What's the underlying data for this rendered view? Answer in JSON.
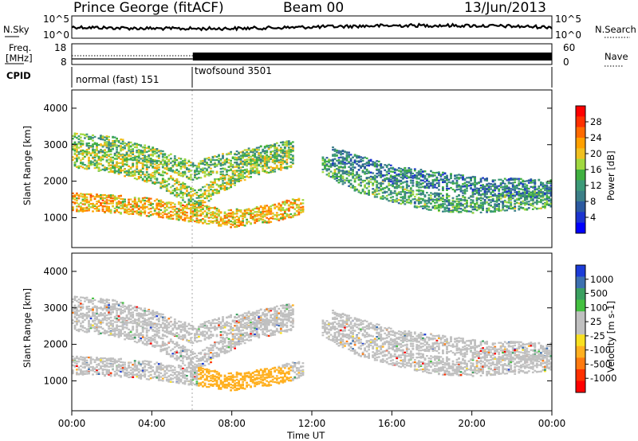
{
  "header": {
    "station": "Prince George (fitACF)",
    "beam": "Beam 00",
    "date": "13/Jun/2013"
  },
  "noise_panel": {
    "left_label": "N.Sky",
    "right_label": "N.Search",
    "left_ticks": [
      "10^5",
      "10^0"
    ],
    "right_ticks": [
      "10^5",
      "10^0"
    ]
  },
  "freq_panel": {
    "label_line1": "Freq.",
    "label_line2": "[MHz]",
    "right_label": "Nave",
    "left_ticks": [
      "18",
      "8"
    ],
    "right_ticks": [
      "60",
      "0"
    ]
  },
  "cpid_panel": {
    "label": "CPID",
    "modes": [
      {
        "name": "normal (fast) 151",
        "start_hour": 0,
        "end_hour": 6.05
      },
      {
        "name": "twofsound 3501",
        "start_hour": 6.05,
        "end_hour": 24
      }
    ]
  },
  "power_panel": {
    "ylabel": "Slant Range [km]",
    "cbar_label": "Power [dB]",
    "cbar_ticks": [
      "28",
      "24",
      "20",
      "16",
      "12",
      "8",
      "4"
    ],
    "cbar_colors": [
      "#ff0000",
      "#ff3000",
      "#ff6a00",
      "#ffa000",
      "#f0c020",
      "#a0d840",
      "#40b040",
      "#3c9a78",
      "#3c7f88",
      "#2c5aa0",
      "#1c34d0",
      "#0000ff"
    ]
  },
  "velocity_panel": {
    "ylabel": "Slant Range [km]",
    "cbar_label": "Velocity [m s-1]",
    "cbar_ticks": [
      "1000",
      "500",
      "100",
      "25",
      "-25",
      "-100",
      "-500",
      "-1000"
    ],
    "cbar_colors": [
      "#1c3cd8",
      "#3c70b0",
      "#3aa060",
      "#44c040",
      "#c0c0c0",
      "#c0c0c0",
      "#f8e020",
      "#ffb020",
      "#ff7a10",
      "#ff3000",
      "#ff0000"
    ]
  },
  "x_axis": {
    "label": "Time UT",
    "ticks": [
      "00:00",
      "04:00",
      "08:00",
      "12:00",
      "16:00",
      "20:00",
      "00:00"
    ]
  },
  "chart_data": {
    "type": "heatmap",
    "title": "Prince George (fitACF)",
    "subtitle": "Beam 00 — 13/Jun/2013",
    "xlabel": "Time UT",
    "ylabel": "Slant Range [km]",
    "xlim_hours": [
      0,
      24
    ],
    "ylim_km": [
      180,
      4500
    ],
    "yticks": [
      1000,
      2000,
      3000,
      4000
    ],
    "power_range_db": [
      0,
      30
    ],
    "velocity_range_ms": [
      -1000,
      1000
    ],
    "features": [
      {
        "name": "band-1",
        "power_db": 20,
        "track": [
          [
            0,
            1450
          ],
          [
            2,
            1400
          ],
          [
            4,
            1300
          ],
          [
            6,
            1150
          ],
          [
            8,
            1000
          ],
          [
            10,
            1150
          ],
          [
            11.5,
            1350
          ]
        ]
      },
      {
        "name": "band-2",
        "power_db": 16,
        "track": [
          [
            0,
            2650
          ],
          [
            2,
            2500
          ],
          [
            4,
            2200
          ],
          [
            5,
            1900
          ],
          [
            6.2,
            1500
          ],
          [
            7.5,
            2000
          ],
          [
            9,
            2400
          ],
          [
            11,
            2650
          ]
        ]
      },
      {
        "name": "band-3",
        "power_db": 14,
        "track": [
          [
            0,
            3100
          ],
          [
            2,
            3000
          ],
          [
            4,
            2700
          ],
          [
            6,
            2300
          ],
          [
            8,
            2600
          ],
          [
            11,
            2900
          ]
        ]
      },
      {
        "name": "band-4",
        "power_db": 12,
        "track": [
          [
            12.5,
            2500
          ],
          [
            14,
            2000
          ],
          [
            16,
            1700
          ],
          [
            18,
            1450
          ],
          [
            20,
            1400
          ],
          [
            22,
            1450
          ],
          [
            24,
            1550
          ]
        ]
      },
      {
        "name": "band-5",
        "power_db": 9,
        "track": [
          [
            13,
            2700
          ],
          [
            16,
            2200
          ],
          [
            20,
            1900
          ],
          [
            24,
            1800
          ]
        ]
      }
    ]
  }
}
